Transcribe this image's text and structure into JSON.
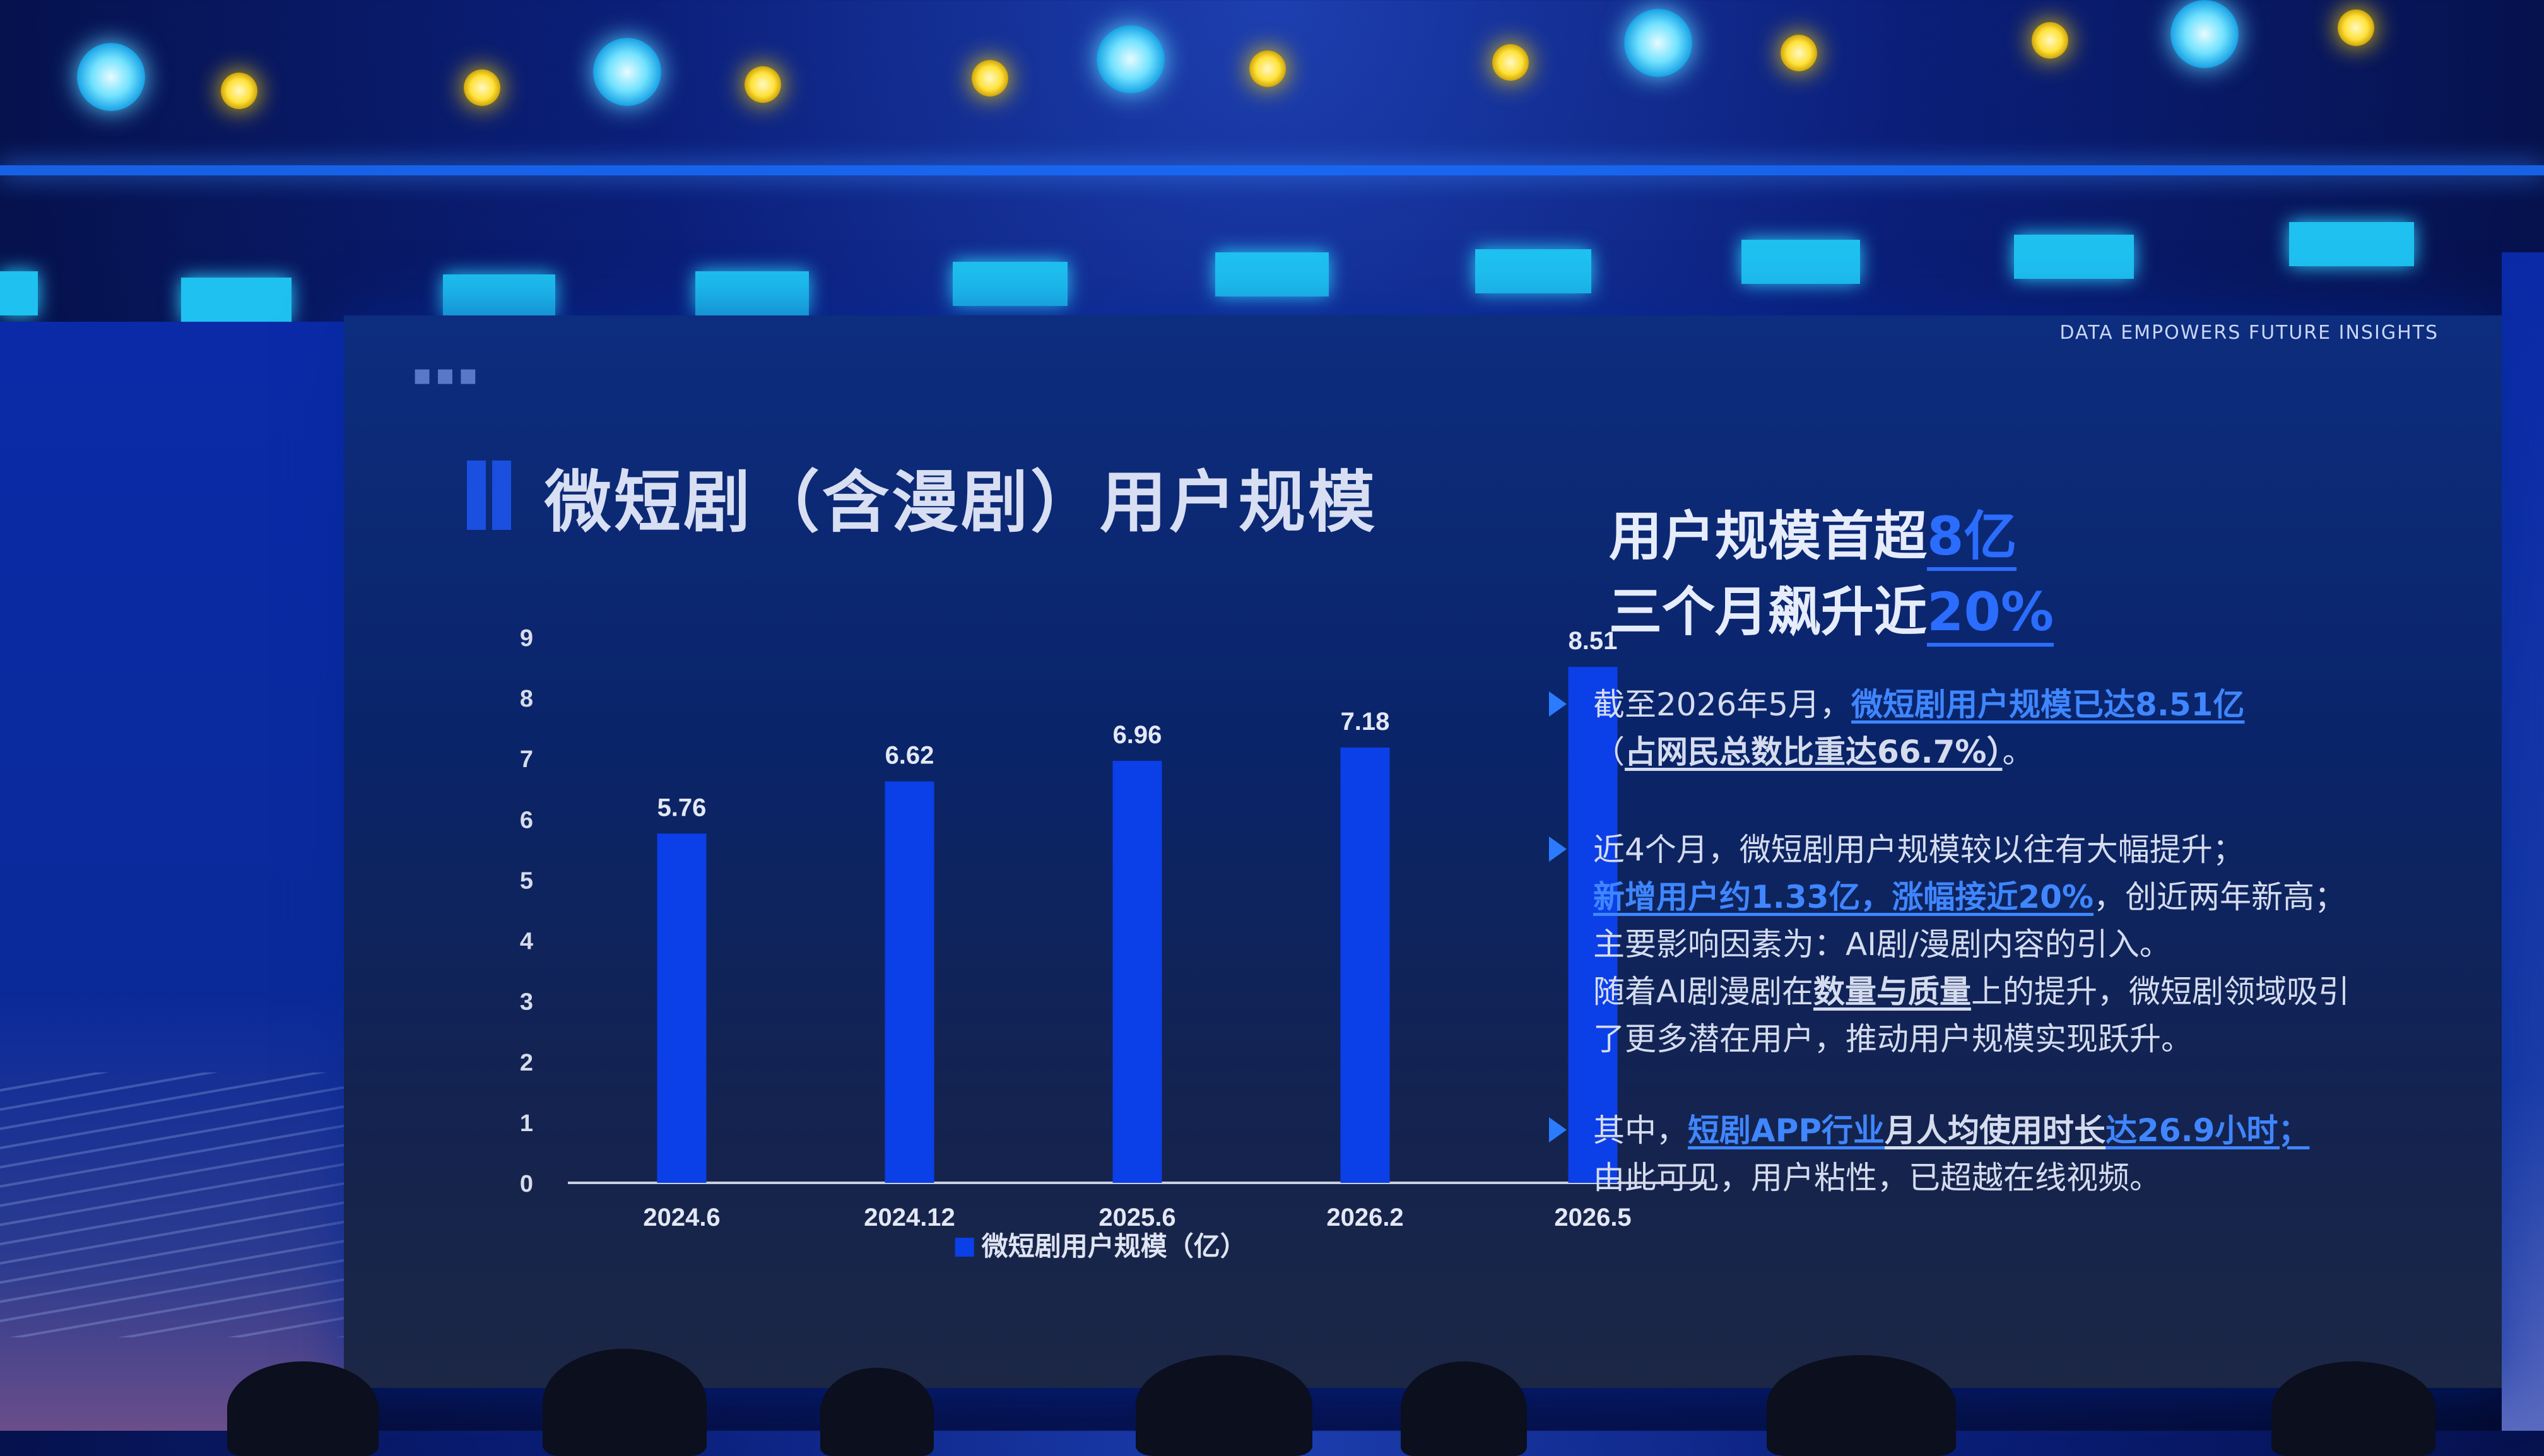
{
  "slide": {
    "tagline": "DATA  EMPOWERS  FUTURE  INSIGHTS",
    "title": "微短剧（含漫剧）用户规模",
    "headline_line1_prefix": "用户规模首超",
    "headline_line1_accent": "8亿",
    "headline_line2_prefix": "三个月飙升近",
    "headline_line2_accent": "20%",
    "bullet1": {
      "line1_a": "截至2026年5月，",
      "line1_hl": "微短剧用户规模已达8.51亿",
      "line2_pre": "（",
      "line2_ul": "占网民总数比重达66.7%）",
      "line2_post": "。"
    },
    "bullet2": {
      "line1": "近4个月，微短剧用户规模较以往有大幅提升；",
      "line2_hl": "新增用户约1.33亿，涨幅接近20%",
      "line2_post": "，创近两年新高；",
      "line3": "主要影响因素为：AI剧/漫剧内容的引入。",
      "line4_a": "随着AI剧漫剧在",
      "line4_ul": "数量与质量",
      "line4_b": "上的提升，微短剧领域吸引",
      "line5": "了更多潜在用户，推动用户规模实现跃升。"
    },
    "bullet3": {
      "line1_a": "其中，",
      "line1_hl1": "短剧APP行业",
      "line1_ul": "月人均使用时长",
      "line1_hl2": "达26.9小时；",
      "line2": "由此可见，用户粘性，已超越在线视频。"
    }
  },
  "chart_data": {
    "type": "bar",
    "categories": [
      "2024.6",
      "2024.12",
      "2025.6",
      "2026.2",
      "2026.5"
    ],
    "series": [
      {
        "name": "微短剧用户规模（亿）",
        "values": [
          5.76,
          6.62,
          6.96,
          7.18,
          8.51
        ]
      }
    ],
    "ylim": [
      0,
      9
    ],
    "yticks": [
      0,
      1,
      2,
      3,
      4,
      5,
      6,
      7,
      8,
      9
    ],
    "data_labels": [
      "5.76",
      "6.62",
      "6.96",
      "7.18",
      "8.51"
    ],
    "legend_position": "bottom",
    "bar_color": "#0b3fe8"
  }
}
